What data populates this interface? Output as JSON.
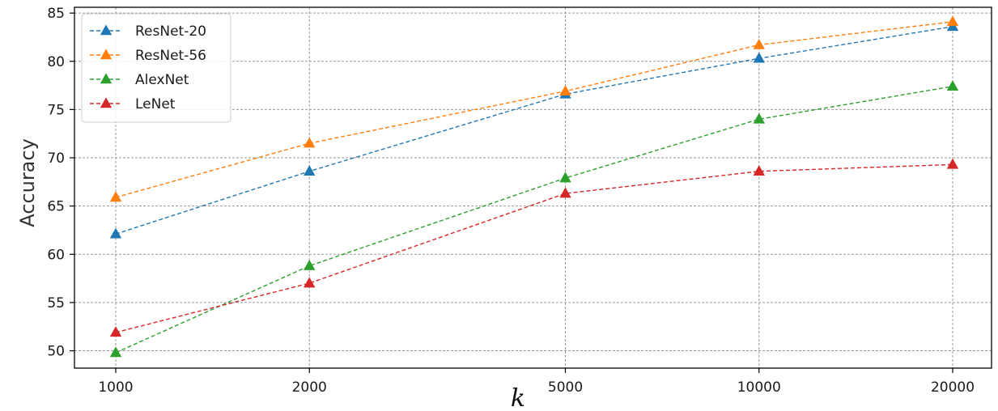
{
  "chart_data": {
    "type": "line",
    "title": "",
    "xlabel": "k",
    "ylabel": "Accuracy",
    "x": [
      "1000",
      "2000",
      "5000",
      "10000",
      "20000"
    ],
    "xscale": "categorical-evenly-log",
    "ylim": [
      48.2,
      85.6
    ],
    "yticks": [
      50,
      55,
      60,
      65,
      70,
      75,
      80,
      85
    ],
    "grid": true,
    "legend_position": "top-left",
    "series": [
      {
        "name": "ResNet-20",
        "color": "#1f77b4",
        "values": [
          62.1,
          68.6,
          76.6,
          80.3,
          83.6
        ]
      },
      {
        "name": "ResNet-56",
        "color": "#ff7f0e",
        "values": [
          65.9,
          71.5,
          76.9,
          81.7,
          84.1
        ]
      },
      {
        "name": "AlexNet",
        "color": "#2ca02c",
        "values": [
          49.8,
          58.8,
          67.9,
          74.0,
          77.4
        ]
      },
      {
        "name": "LeNet",
        "color": "#d62728",
        "values": [
          51.9,
          57.0,
          66.3,
          68.6,
          69.3
        ]
      }
    ]
  }
}
